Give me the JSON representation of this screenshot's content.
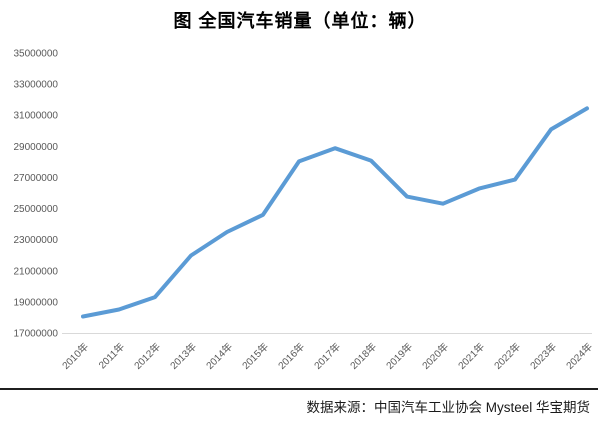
{
  "title": "图 全国汽车销量（单位：辆）",
  "footer": {
    "source_text": "数据来源：中国汽车工业协会 Mysteel 华宝期货"
  },
  "chart_data": {
    "type": "line",
    "title": "图 全国汽车销量（单位：辆）",
    "categories": [
      "2010年",
      "2011年",
      "2012年",
      "2013年",
      "2014年",
      "2015年",
      "2016年",
      "2017年",
      "2018年",
      "2019年",
      "2020年",
      "2021年",
      "2022年",
      "2023年",
      "2024年"
    ],
    "values": [
      18060000,
      18510000,
      19310000,
      21980000,
      23490000,
      24600000,
      28030000,
      28880000,
      28080000,
      25770000,
      25310000,
      26280000,
      26860000,
      30090000,
      31440000
    ],
    "series_name": "全国汽车销量",
    "xlabel": "",
    "ylabel": "",
    "ylim": [
      17000000,
      35000000
    ],
    "ytick_step": 2000000,
    "ytick_labels": [
      "17000000",
      "19000000",
      "21000000",
      "23000000",
      "25000000",
      "27000000",
      "29000000",
      "31000000",
      "33000000",
      "35000000"
    ],
    "grid": false,
    "legend": "none",
    "line_color": "#5B9BD5",
    "axis_text_color": "#595959",
    "axis_line_color": "#D9D9D9"
  }
}
